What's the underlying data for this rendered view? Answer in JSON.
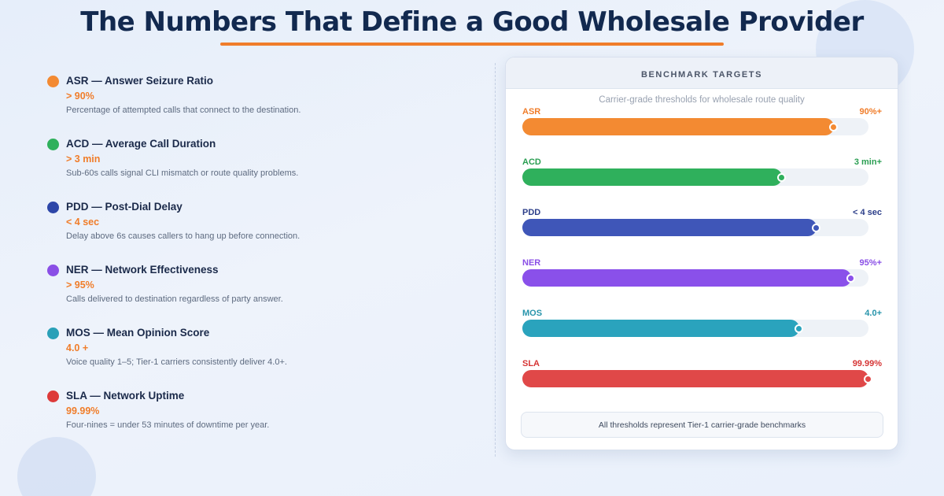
{
  "title": "The Numbers That Define a Good Wholesale Provider",
  "metrics": [
    {
      "key": "asr",
      "name": "ASR — Answer Seizure Ratio",
      "target": "> 90%",
      "description": "Percentage of attempted calls that connect to the destination.",
      "color": "#f38a32"
    },
    {
      "key": "acd",
      "name": "ACD — Average Call Duration",
      "target": "> 3 min",
      "description": "Sub-60s calls signal CLI mismatch or route quality problems.",
      "color": "#2fb05c"
    },
    {
      "key": "pdd",
      "name": "PDD — Post-Dial Delay",
      "target": "< 4 sec",
      "description": "Delay above 6s causes callers to hang up before connection.",
      "color": "#2d46a8"
    },
    {
      "key": "ner",
      "name": "NER — Network Effectiveness",
      "target": "> 95%",
      "description": "Calls delivered to destination regardless of party answer.",
      "color": "#8a4fe6"
    },
    {
      "key": "mos",
      "name": "MOS — Mean Opinion Score",
      "target": "4.0 +",
      "description": "Voice quality 1–5; Tier-1 carriers consistently deliver 4.0+.",
      "color": "#2aa0b8"
    },
    {
      "key": "sla",
      "name": "SLA — Network Uptime",
      "target": "99.99%",
      "description": "Four-nines = under 53 minutes of downtime per year.",
      "color": "#dd3a3a"
    }
  ],
  "benchmark": {
    "heading": "BENCHMARK TARGETS",
    "subtitle": "Carrier-grade thresholds for wholesale route quality",
    "footnote": "All thresholds represent Tier-1 carrier-grade benchmarks",
    "bars": [
      {
        "label": "ASR",
        "value": "90%+",
        "fill": 0.9,
        "color": "#f38a32",
        "label_color": "#f07d2a"
      },
      {
        "label": "ACD",
        "value": "3 min+",
        "fill": 0.75,
        "color": "#2fb05c",
        "label_color": "#2a9e52"
      },
      {
        "label": "PDD",
        "value": "< 4 sec",
        "fill": 0.85,
        "color": "#3f56b8",
        "label_color": "#2d3f8a"
      },
      {
        "label": "NER",
        "value": "95%+",
        "fill": 0.95,
        "color": "#8a50ea",
        "label_color": "#8a4fe6"
      },
      {
        "label": "MOS",
        "value": "4.0+",
        "fill": 0.8,
        "color": "#2aa3bd",
        "label_color": "#2794ab"
      },
      {
        "label": "SLA",
        "value": "99.99%",
        "fill": 1.0,
        "color": "#e04848",
        "label_color": "#d63535"
      }
    ]
  }
}
